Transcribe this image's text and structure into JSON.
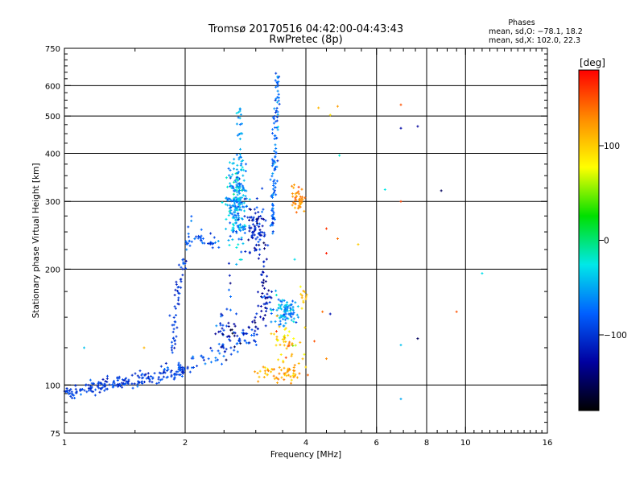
{
  "chart_data": {
    "type": "scatter",
    "title": "Tromsø 20170516 04:42:00-04:43:43",
    "subtitle": "RwPretec (8p)",
    "xlabel": "Frequency [MHz]",
    "ylabel": "Stationary phase Virtual Height [km]",
    "x_scale": "log",
    "y_scale": "log",
    "xlim": [
      1,
      16
    ],
    "ylim": [
      75,
      750
    ],
    "grid": true,
    "x_ticks": [
      1,
      2,
      4,
      6,
      8,
      10,
      16
    ],
    "x_tick_labels": [
      "1",
      "2",
      "4",
      "6",
      "8",
      "10",
      "16"
    ],
    "y_ticks": [
      75,
      100,
      200,
      300,
      400,
      500,
      600,
      750
    ],
    "y_tick_labels": [
      "75",
      "100",
      "200",
      "300",
      "400",
      "500",
      "600",
      "750"
    ],
    "legend": {
      "title": "Phases",
      "lines": [
        "mean, sd,O: −78.1, 18.2",
        "mean, sd,X: 102.0, 22.3"
      ],
      "placement": "top-right"
    },
    "colorbar": {
      "unit": "[deg]",
      "range": [
        -180,
        180
      ],
      "ticks": [
        100,
        0,
        -100
      ],
      "tick_labels": [
        "100",
        "0",
        "−100"
      ],
      "colormap": "rainbow",
      "stops": [
        "#ff0000",
        "#ff8c00",
        "#ffff00",
        "#00e000",
        "#00e8e8",
        "#0060ff",
        "#0000a0",
        "#000000"
      ]
    },
    "point_style": "small-plus",
    "traces": [
      {
        "kind": "line",
        "from": [
          1.0,
          96
        ],
        "to": [
          1.6,
          104
        ],
        "n": 140,
        "jit_f": 0.02,
        "jit_h": 0.02,
        "phase": -95,
        "phase_sd": 12
      },
      {
        "kind": "line",
        "from": [
          1.6,
          103
        ],
        "to": [
          2.0,
          108
        ],
        "n": 50,
        "jit_f": 0.012,
        "jit_h": 0.015,
        "phase": -95,
        "phase_sd": 12
      },
      {
        "kind": "line",
        "from": [
          1.75,
          110
        ],
        "to": [
          2.05,
          110
        ],
        "n": 24,
        "jit_f": 0.01,
        "jit_h": 0.02,
        "phase": -90,
        "phase_sd": 15
      },
      {
        "kind": "line",
        "from": [
          1.85,
          118
        ],
        "to": [
          1.92,
          175
        ],
        "n": 30,
        "jit_f": 0.01,
        "jit_h": 0.03,
        "phase": -100,
        "phase_sd": 10
      },
      {
        "kind": "line",
        "from": [
          1.92,
          175
        ],
        "to": [
          2.0,
          215
        ],
        "n": 22,
        "jit_f": 0.01,
        "jit_h": 0.03,
        "phase": -95,
        "phase_sd": 10
      },
      {
        "kind": "line",
        "from": [
          2.02,
          225
        ],
        "to": [
          2.08,
          270
        ],
        "n": 12,
        "jit_f": 0.01,
        "jit_h": 0.03,
        "phase": -80,
        "phase_sd": 10
      },
      {
        "kind": "line",
        "from": [
          2.05,
          240
        ],
        "to": [
          2.4,
          235
        ],
        "n": 30,
        "jit_f": 0.01,
        "jit_h": 0.02,
        "phase": -85,
        "phase_sd": 12
      },
      {
        "kind": "line",
        "from": [
          2.05,
          112
        ],
        "to": [
          3.0,
          135
        ],
        "n": 60,
        "jit_f": 0.02,
        "jit_h": 0.03,
        "phase": -85,
        "phase_sd": 15
      },
      {
        "kind": "cluster",
        "center": [
          2.7,
          290
        ],
        "sf": 0.03,
        "sh": 0.12,
        "n": 220,
        "phase": -55,
        "phase_sd": 22
      },
      {
        "kind": "line",
        "from": [
          2.75,
          340
        ],
        "to": [
          2.72,
          520
        ],
        "n": 35,
        "jit_f": 0.01,
        "jit_h": 0.03,
        "phase": -55,
        "phase_sd": 15
      },
      {
        "kind": "cluster",
        "center": [
          3.0,
          250
        ],
        "sf": 0.03,
        "sh": 0.08,
        "n": 90,
        "phase": -110,
        "phase_sd": 20
      },
      {
        "kind": "line",
        "from": [
          3.3,
          250
        ],
        "to": [
          3.4,
          650
        ],
        "n": 110,
        "jit_f": 0.008,
        "jit_h": 0.02,
        "phase": -75,
        "phase_sd": 15
      },
      {
        "kind": "line",
        "from": [
          2.45,
          120
        ],
        "to": [
          2.55,
          200
        ],
        "n": 25,
        "jit_f": 0.015,
        "jit_h": 0.03,
        "phase": -90,
        "phase_sd": 20
      },
      {
        "kind": "line",
        "from": [
          3.15,
          150
        ],
        "to": [
          3.15,
          205
        ],
        "n": 30,
        "jit_f": 0.012,
        "jit_h": 0.03,
        "phase": -120,
        "phase_sd": 15
      },
      {
        "kind": "line",
        "from": [
          2.95,
          140
        ],
        "to": [
          3.2,
          170
        ],
        "n": 25,
        "jit_f": 0.02,
        "jit_h": 0.03,
        "phase": -115,
        "phase_sd": 15
      },
      {
        "kind": "cluster",
        "center": [
          2.6,
          135
        ],
        "sf": 0.05,
        "sh": 0.05,
        "n": 25,
        "phase": -130,
        "phase_sd": 20
      },
      {
        "kind": "cluster",
        "center": [
          3.55,
          155
        ],
        "sf": 0.04,
        "sh": 0.04,
        "n": 90,
        "phase": -55,
        "phase_sd": 18
      },
      {
        "kind": "cluster",
        "center": [
          3.6,
          130
        ],
        "sf": 0.04,
        "sh": 0.06,
        "n": 45,
        "phase": 100,
        "phase_sd": 20
      },
      {
        "kind": "cluster",
        "center": [
          3.55,
          108
        ],
        "sf": 0.05,
        "sh": 0.025,
        "n": 45,
        "phase": 115,
        "phase_sd": 15
      },
      {
        "kind": "cluster",
        "center": [
          3.15,
          108
        ],
        "sf": 0.03,
        "sh": 0.03,
        "n": 15,
        "phase": 110,
        "phase_sd": 20
      },
      {
        "kind": "cluster",
        "center": [
          3.85,
          305
        ],
        "sf": 0.025,
        "sh": 0.05,
        "n": 45,
        "phase": 125,
        "phase_sd": 12
      },
      {
        "kind": "cluster",
        "center": [
          3.95,
          170
        ],
        "sf": 0.012,
        "sh": 0.05,
        "n": 12,
        "phase": 105,
        "phase_sd": 15
      }
    ],
    "scatter_points": [
      {
        "x": 4.3,
        "y": 525,
        "phase": 110
      },
      {
        "x": 4.8,
        "y": 530,
        "phase": 120
      },
      {
        "x": 6.9,
        "y": 535,
        "phase": 150
      },
      {
        "x": 6.9,
        "y": 465,
        "phase": -125
      },
      {
        "x": 7.6,
        "y": 470,
        "phase": -130
      },
      {
        "x": 8.7,
        "y": 320,
        "phase": -150
      },
      {
        "x": 4.85,
        "y": 395,
        "phase": -20
      },
      {
        "x": 6.3,
        "y": 322,
        "phase": -25
      },
      {
        "x": 6.9,
        "y": 300,
        "phase": 155
      },
      {
        "x": 4.5,
        "y": 255,
        "phase": 160
      },
      {
        "x": 4.5,
        "y": 220,
        "phase": 170
      },
      {
        "x": 4.8,
        "y": 240,
        "phase": 140
      },
      {
        "x": 5.4,
        "y": 232,
        "phase": 100
      },
      {
        "x": 11.0,
        "y": 195,
        "phase": -30
      },
      {
        "x": 9.5,
        "y": 155,
        "phase": 150
      },
      {
        "x": 7.6,
        "y": 132,
        "phase": -150
      },
      {
        "x": 6.9,
        "y": 127,
        "phase": -40
      },
      {
        "x": 6.9,
        "y": 92,
        "phase": -50
      },
      {
        "x": 4.4,
        "y": 155,
        "phase": 140
      },
      {
        "x": 4.6,
        "y": 153,
        "phase": -120
      },
      {
        "x": 4.5,
        "y": 117,
        "phase": 130
      },
      {
        "x": 4.2,
        "y": 130,
        "phase": 150
      },
      {
        "x": 1.12,
        "y": 125,
        "phase": -40
      },
      {
        "x": 1.58,
        "y": 125,
        "phase": 110
      },
      {
        "x": 3.75,
        "y": 212,
        "phase": -30
      },
      {
        "x": 4.6,
        "y": 503,
        "phase": 90
      }
    ]
  }
}
